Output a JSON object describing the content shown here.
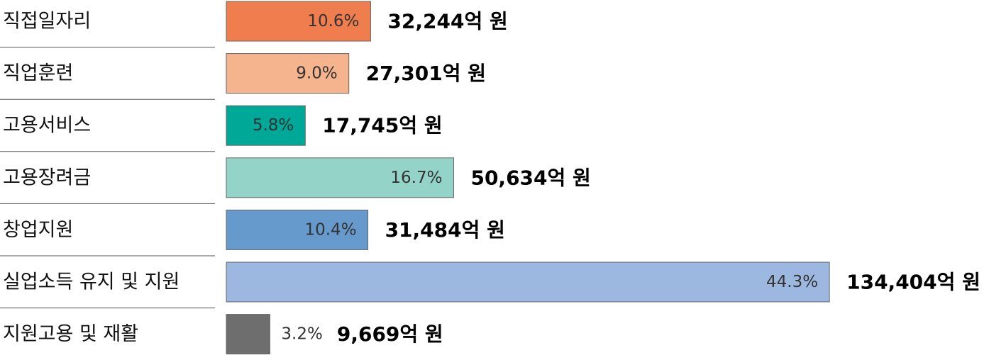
{
  "chart_data": {
    "type": "bar",
    "categories": [
      "직접일자리",
      "직업훈련",
      "고용서비스",
      "고용장려금",
      "창업지원",
      "실업소득 유지 및 지원",
      "지원고용 및 재활"
    ],
    "values": [
      10.6,
      9.0,
      5.8,
      16.7,
      10.4,
      44.3,
      3.2
    ],
    "value_labels": [
      "10.6%",
      "9.0%",
      "5.8%",
      "16.7%",
      "10.4%",
      "44.3%",
      "3.2%"
    ],
    "amount_labels": [
      "32,244억 원",
      "27,301억 원",
      "17,745억 원",
      "50,634억 원",
      "31,484억 원",
      "134,404억 원",
      "9,669억 원"
    ],
    "colors": [
      "#f07d4e",
      "#f5b38e",
      "#00a898",
      "#93d3c8",
      "#6699cc",
      "#9db8e0",
      "#6e6e6e"
    ]
  }
}
